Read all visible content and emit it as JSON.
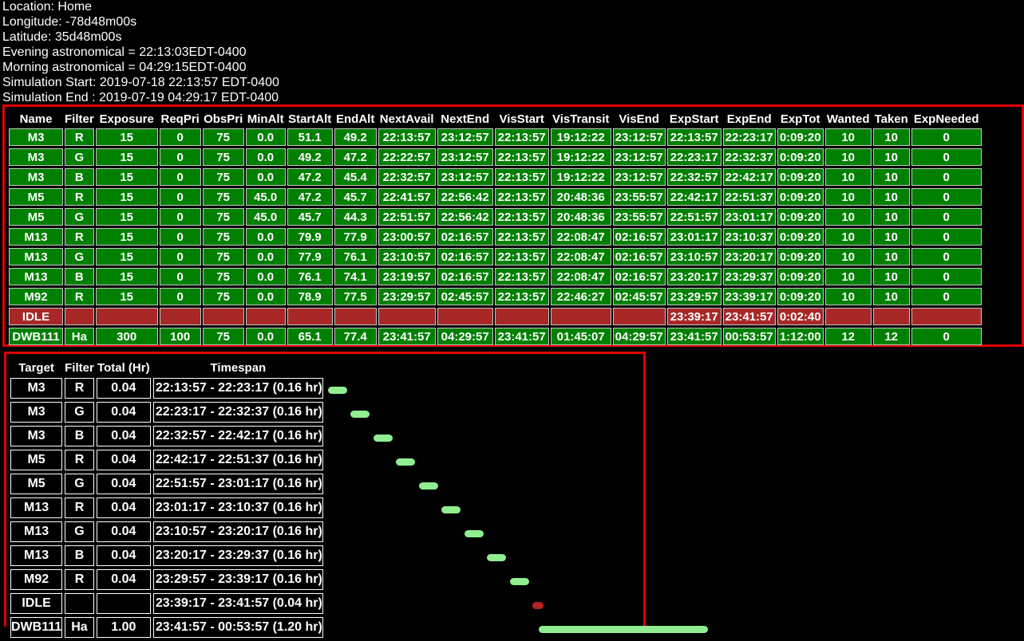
{
  "header": {
    "lines": [
      "Location: Home",
      "Longitude: -78d48m00s",
      "Latitude: 35d48m00s",
      "Evening astronomical = 22:13:03EDT-0400",
      "Morning astronomical = 04:29:15EDT-0400",
      "Simulation Start: 2019-07-18 22:13:57 EDT-0400",
      "Simulation End : 2019-07-19 04:29:17 EDT-0400"
    ]
  },
  "table": {
    "columns": [
      "Name",
      "Filter",
      "Exposure",
      "ReqPri",
      "ObsPri",
      "MinAlt",
      "StartAlt",
      "EndAlt",
      "NextAvail",
      "NextEnd",
      "VisStart",
      "VisTransit",
      "VisEnd",
      "ExpStart",
      "ExpEnd",
      "ExpTot",
      "Wanted",
      "Taken",
      "ExpNeeded"
    ],
    "rows": [
      [
        "M3",
        "R",
        "15",
        "0",
        "75",
        "0.0",
        "51.1",
        "49.2",
        "22:13:57",
        "23:12:57",
        "22:13:57",
        "19:12:22",
        "23:12:57",
        "22:13:57",
        "22:23:17",
        "0:09:20",
        "10",
        "10",
        "0"
      ],
      [
        "M3",
        "G",
        "15",
        "0",
        "75",
        "0.0",
        "49.2",
        "47.2",
        "22:22:57",
        "23:12:57",
        "22:13:57",
        "19:12:22",
        "23:12:57",
        "22:23:17",
        "22:32:37",
        "0:09:20",
        "10",
        "10",
        "0"
      ],
      [
        "M3",
        "B",
        "15",
        "0",
        "75",
        "0.0",
        "47.2",
        "45.4",
        "22:32:57",
        "23:12:57",
        "22:13:57",
        "19:12:22",
        "23:12:57",
        "22:32:57",
        "22:42:17",
        "0:09:20",
        "10",
        "10",
        "0"
      ],
      [
        "M5",
        "R",
        "15",
        "0",
        "75",
        "45.0",
        "47.2",
        "45.7",
        "22:41:57",
        "22:56:42",
        "22:13:57",
        "20:48:36",
        "23:55:57",
        "22:42:17",
        "22:51:37",
        "0:09:20",
        "10",
        "10",
        "0"
      ],
      [
        "M5",
        "G",
        "15",
        "0",
        "75",
        "45.0",
        "45.7",
        "44.3",
        "22:51:57",
        "22:56:42",
        "22:13:57",
        "20:48:36",
        "23:55:57",
        "22:51:57",
        "23:01:17",
        "0:09:20",
        "10",
        "10",
        "0"
      ],
      [
        "M13",
        "R",
        "15",
        "0",
        "75",
        "0.0",
        "79.9",
        "77.9",
        "23:00:57",
        "02:16:57",
        "22:13:57",
        "22:08:47",
        "02:16:57",
        "23:01:17",
        "23:10:37",
        "0:09:20",
        "10",
        "10",
        "0"
      ],
      [
        "M13",
        "G",
        "15",
        "0",
        "75",
        "0.0",
        "77.9",
        "76.1",
        "23:10:57",
        "02:16:57",
        "22:13:57",
        "22:08:47",
        "02:16:57",
        "23:10:57",
        "23:20:17",
        "0:09:20",
        "10",
        "10",
        "0"
      ],
      [
        "M13",
        "B",
        "15",
        "0",
        "75",
        "0.0",
        "76.1",
        "74.1",
        "23:19:57",
        "02:16:57",
        "22:13:57",
        "22:08:47",
        "02:16:57",
        "23:20:17",
        "23:29:37",
        "0:09:20",
        "10",
        "10",
        "0"
      ],
      [
        "M92",
        "R",
        "15",
        "0",
        "75",
        "0.0",
        "78.9",
        "77.5",
        "23:29:57",
        "02:45:57",
        "22:13:57",
        "22:46:27",
        "02:45:57",
        "23:29:57",
        "23:39:17",
        "0:09:20",
        "10",
        "10",
        "0"
      ],
      [
        "IDLE",
        null,
        null,
        null,
        null,
        null,
        null,
        null,
        null,
        null,
        null,
        null,
        null,
        "23:39:17",
        "23:41:57",
        "0:02:40",
        null,
        null,
        null
      ],
      [
        "DWB111",
        "Ha",
        "300",
        "100",
        "75",
        "0.0",
        "65.1",
        "77.4",
        "23:41:57",
        "04:29:57",
        "23:41:57",
        "01:45:07",
        "04:29:57",
        "23:41:57",
        "00:53:57",
        "1:12:00",
        "12",
        "12",
        "0"
      ]
    ]
  },
  "schedule": {
    "columns": [
      "Target",
      "Filter",
      "Total (Hr)",
      "Timespan"
    ],
    "rows": [
      [
        "M3",
        "R",
        "0.04",
        "22:13:57 - 22:23:17 (0.16 hr)"
      ],
      [
        "M3",
        "G",
        "0.04",
        "22:23:17 - 22:32:37 (0.16 hr)"
      ],
      [
        "M3",
        "B",
        "0.04",
        "22:32:57 - 22:42:17 (0.16 hr)"
      ],
      [
        "M5",
        "R",
        "0.04",
        "22:42:17 - 22:51:37 (0.16 hr)"
      ],
      [
        "M5",
        "G",
        "0.04",
        "22:51:57 - 23:01:17 (0.16 hr)"
      ],
      [
        "M13",
        "R",
        "0.04",
        "23:01:17 - 23:10:37 (0.16 hr)"
      ],
      [
        "M13",
        "G",
        "0.04",
        "23:10:57 - 23:20:17 (0.16 hr)"
      ],
      [
        "M13",
        "B",
        "0.04",
        "23:20:17 - 23:29:37 (0.16 hr)"
      ],
      [
        "M92",
        "R",
        "0.04",
        "23:29:57 - 23:39:17 (0.16 hr)"
      ],
      [
        "IDLE",
        null,
        null,
        "23:39:17 - 23:41:57 (0.04 hr)"
      ],
      [
        "DWB111",
        "Ha",
        "1.00",
        "23:41:57 - 00:53:57 (1.20 hr)"
      ]
    ]
  }
}
